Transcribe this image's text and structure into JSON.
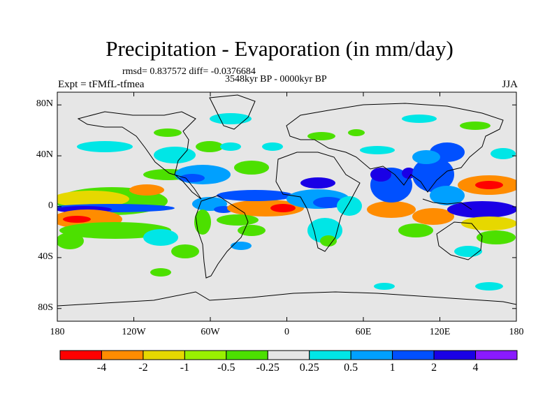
{
  "title": "Precipitation - Evaporation (in mm/day)",
  "stats": "rmsd= 0.837572 diff= -0.0376684",
  "period": "3548kyr BP - 0000kyr BP",
  "experiment": "Expt = tFMfL-tfmea",
  "season": "JJA",
  "map": {
    "lat_labels": [
      {
        "text": "80N",
        "lat": 80
      },
      {
        "text": "40N",
        "lat": 40
      },
      {
        "text": "0",
        "lat": 0
      },
      {
        "text": "40S",
        "lat": -40
      },
      {
        "text": "80S",
        "lat": -80
      }
    ],
    "lon_labels": [
      {
        "text": "180",
        "lon": -180
      },
      {
        "text": "120W",
        "lon": -120
      },
      {
        "text": "60W",
        "lon": -60
      },
      {
        "text": "0",
        "lon": 0
      },
      {
        "text": "60E",
        "lon": 60
      },
      {
        "text": "120E",
        "lon": 120
      },
      {
        "text": "180",
        "lon": 180
      }
    ],
    "background_color": "#e6e6e6"
  },
  "colorbar": {
    "colors": [
      "#ff0000",
      "#ff8c00",
      "#e6d800",
      "#99f000",
      "#4ce000",
      "#e6e6e6",
      "#00e6e6",
      "#00a0ff",
      "#0050ff",
      "#1a00e6",
      "#8a1aff"
    ],
    "tick_labels": [
      "-4",
      "-2",
      "-1",
      "-0.5",
      "-0.25",
      "0.25",
      "0.5",
      "1",
      "2",
      "4"
    ]
  }
}
